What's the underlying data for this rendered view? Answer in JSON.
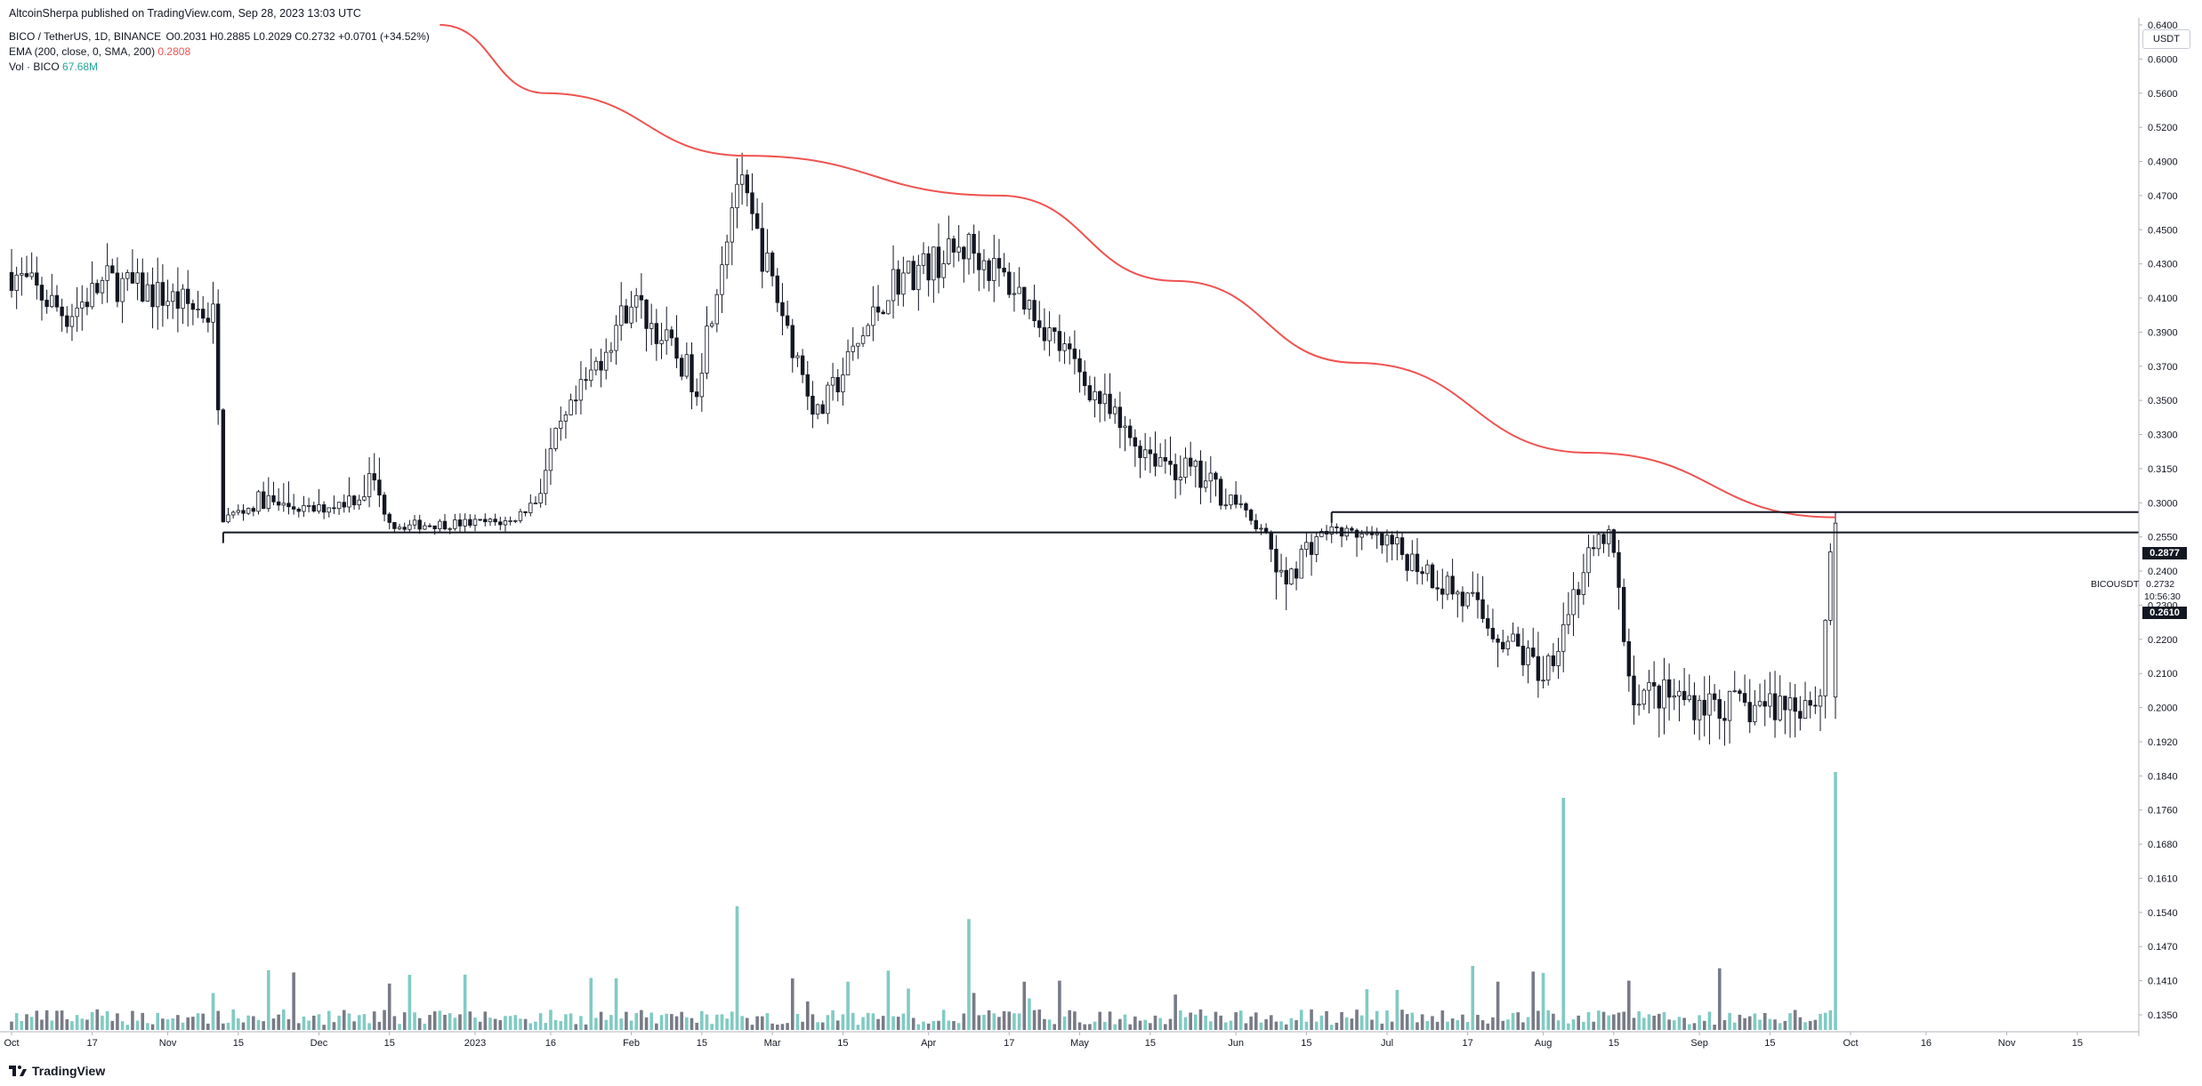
{
  "header": {
    "published": "AltcoinSherpa published on TradingView.com, Sep 28, 2023 13:03 UTC",
    "symbol": "BICO / TetherUS, 1D, BINANCE",
    "ohlc": "O0.2031 H0.2885 L0.2029 C0.2732 +0.0701 (+34.52%)",
    "ema_label": "EMA (200, close, 0, SMA, 200)",
    "ema_value": "0.2808",
    "vol_label": "Vol · BICO",
    "vol_value": "67.68M"
  },
  "axis": {
    "unit": "USDT",
    "price_ticks": [
      "0.6400",
      "0.6000",
      "0.5600",
      "0.5200",
      "0.4900",
      "0.4700",
      "0.4500",
      "0.4300",
      "0.4100",
      "0.3900",
      "0.3700",
      "0.3500",
      "0.3300",
      "0.3150",
      "0.3000",
      "0.2550",
      "0.2400",
      "0.2300",
      "0.2200",
      "0.2100",
      "0.2000",
      "0.1920",
      "0.1840",
      "0.1760",
      "0.1680",
      "0.1610",
      "0.1540",
      "0.1470",
      "0.1410",
      "0.1350"
    ],
    "time_ticks": [
      "Oct",
      "17",
      "Nov",
      "15",
      "Dec",
      "15",
      "2023",
      "16",
      "Feb",
      "15",
      "Mar",
      "15",
      "Apr",
      "17",
      "May",
      "15",
      "Jun",
      "15",
      "Jul",
      "17",
      "Aug",
      "15",
      "Sep",
      "15",
      "Oct",
      "16",
      "Nov",
      "15"
    ]
  },
  "annotations": {
    "resistance": "0.2877",
    "support": "0.2610",
    "symbol_tag": "BICOUSDT",
    "last_price": "0.2732",
    "countdown": "10:56:30"
  },
  "colors": {
    "candle": "#131722",
    "ema": "#ef5350",
    "vol_up": "#80cbc4",
    "vol_down": "#787b86",
    "grid_text": "#131722"
  },
  "footer": {
    "brand": "TradingView"
  },
  "chart_data": {
    "type": "candlestick",
    "title": "",
    "ylim": [
      0.135,
      0.64
    ],
    "x": [
      "2022-10",
      "2022-11",
      "2022-12",
      "2023-01",
      "2023-02",
      "2023-03",
      "2023-04",
      "2023-05",
      "2023-06",
      "2023-07",
      "2023-08",
      "2023-09",
      "2023-10",
      "2023-11"
    ],
    "price_path": [
      {
        "date": "2022-10-01",
        "price": 0.425
      },
      {
        "date": "2022-10-12",
        "price": 0.4
      },
      {
        "date": "2022-10-20",
        "price": 0.42
      },
      {
        "date": "2022-11-01",
        "price": 0.41
      },
      {
        "date": "2022-11-10",
        "price": 0.4
      },
      {
        "date": "2022-11-12",
        "price": 0.28
      },
      {
        "date": "2022-11-20",
        "price": 0.3
      },
      {
        "date": "2022-11-30",
        "price": 0.29
      },
      {
        "date": "2022-12-12",
        "price": 0.31
      },
      {
        "date": "2022-12-16",
        "price": 0.27
      },
      {
        "date": "2023-01-08",
        "price": 0.275
      },
      {
        "date": "2023-02-01",
        "price": 0.41
      },
      {
        "date": "2023-02-14",
        "price": 0.36
      },
      {
        "date": "2023-02-22",
        "price": 0.48
      },
      {
        "date": "2023-03-10",
        "price": 0.34
      },
      {
        "date": "2023-03-25",
        "price": 0.42
      },
      {
        "date": "2023-04-09",
        "price": 0.44
      },
      {
        "date": "2023-04-20",
        "price": 0.41
      },
      {
        "date": "2023-05-10",
        "price": 0.33
      },
      {
        "date": "2023-06-01",
        "price": 0.3
      },
      {
        "date": "2023-06-10",
        "price": 0.235
      },
      {
        "date": "2023-06-20",
        "price": 0.265
      },
      {
        "date": "2023-07-10",
        "price": 0.24
      },
      {
        "date": "2023-08-01",
        "price": 0.21
      },
      {
        "date": "2023-08-14",
        "price": 0.26
      },
      {
        "date": "2023-08-18",
        "price": 0.205
      },
      {
        "date": "2023-09-10",
        "price": 0.2
      },
      {
        "date": "2023-09-25",
        "price": 0.203
      },
      {
        "date": "2023-09-28",
        "price": 0.2732
      }
    ],
    "ema200": [
      {
        "date": "2022-12-25",
        "value": 0.64
      },
      {
        "date": "2023-01-15",
        "value": 0.56
      },
      {
        "date": "2023-02-24",
        "value": 0.495
      },
      {
        "date": "2023-04-15",
        "value": 0.47
      },
      {
        "date": "2023-05-20",
        "value": 0.42
      },
      {
        "date": "2023-06-25",
        "value": 0.372
      },
      {
        "date": "2023-08-10",
        "value": 0.322
      },
      {
        "date": "2023-09-28",
        "value": 0.2808
      }
    ],
    "horizontal_levels": [
      {
        "label": "0.2877",
        "value": 0.2877,
        "from": "2023-06-20"
      },
      {
        "label": "0.2610",
        "value": 0.261,
        "from": "2022-11-12"
      }
    ],
    "volume_spikes": [
      {
        "date": "2023-02-22",
        "relative": 0.48
      },
      {
        "date": "2023-04-09",
        "relative": 0.43
      },
      {
        "date": "2023-08-05",
        "relative": 0.9
      },
      {
        "date": "2023-09-28",
        "relative": 1.0
      }
    ],
    "last_volume": "67.68M"
  }
}
